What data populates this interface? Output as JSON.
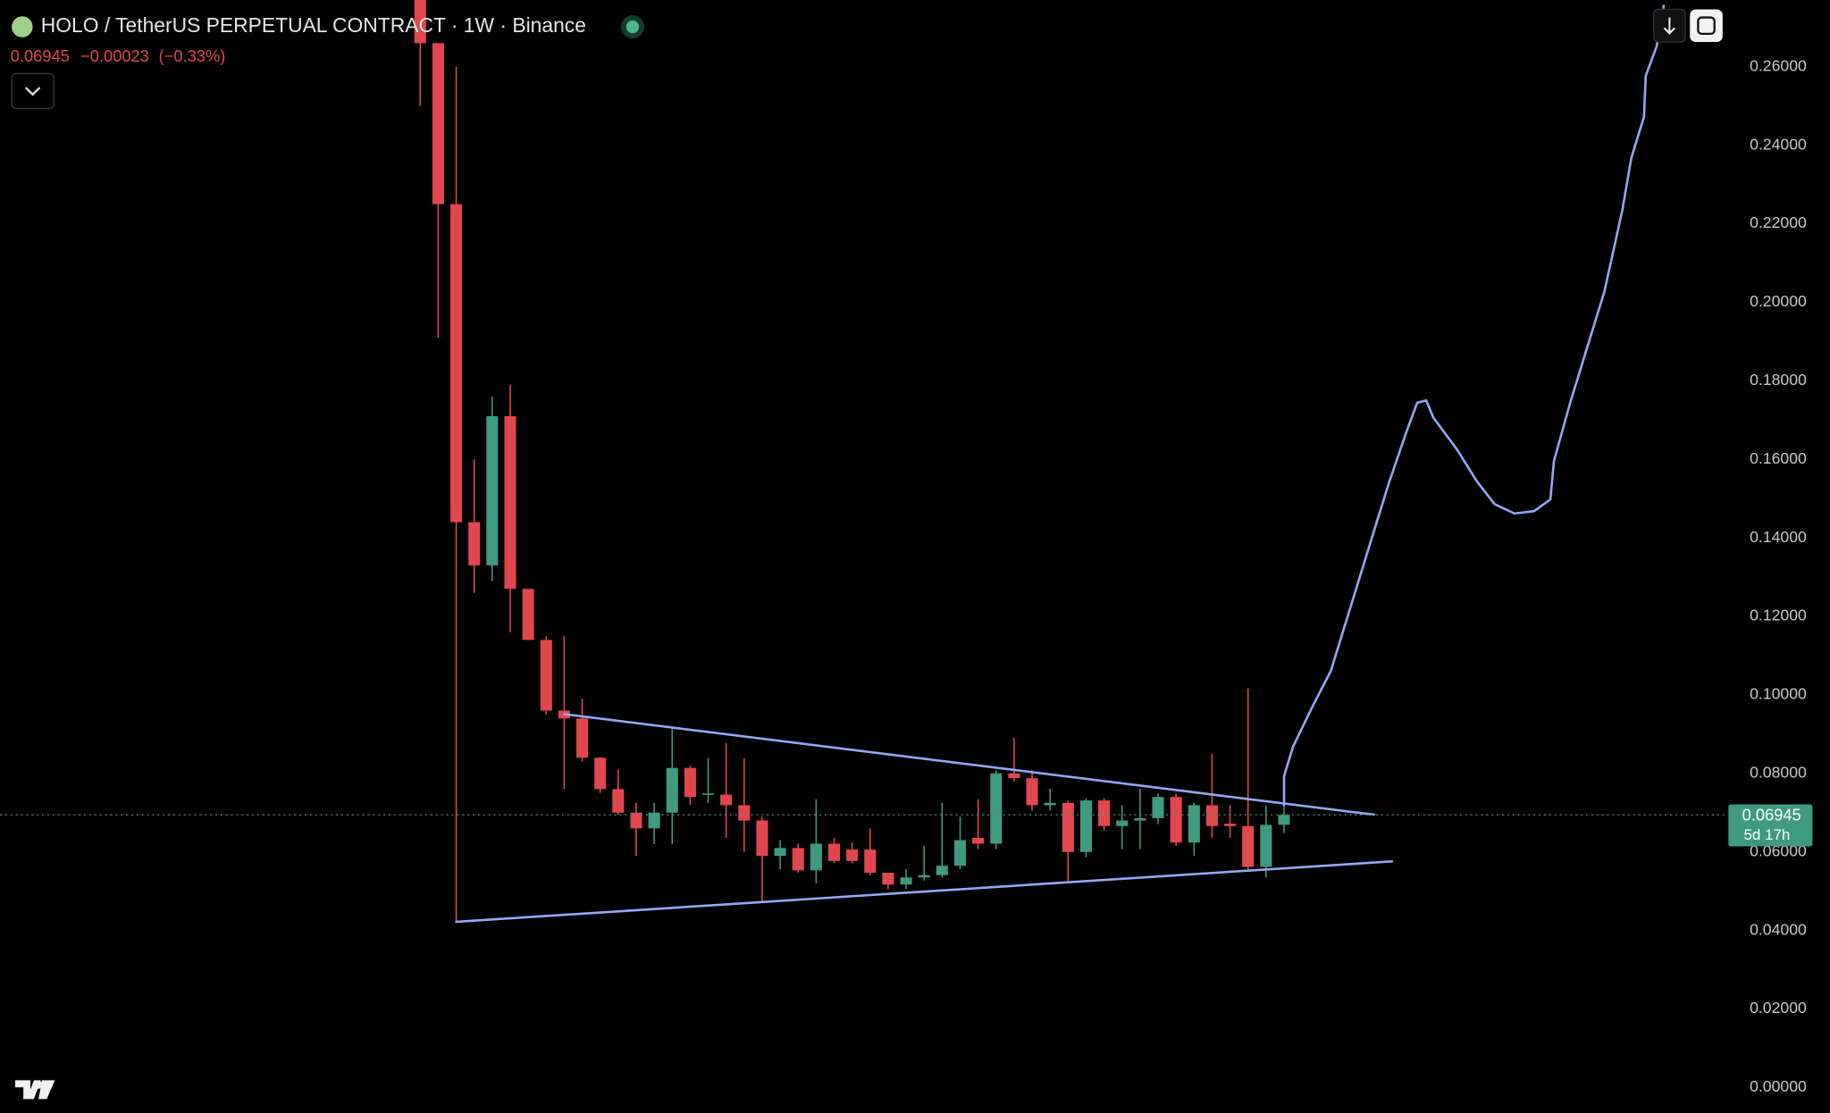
{
  "header": {
    "title": "HOLO / TetherUS PERPETUAL CONTRACT · 1W · Binance",
    "last": "0.06945",
    "change": "−0.00023",
    "change_pct": "(−0.33%)"
  },
  "chart_data": {
    "type": "candlestick",
    "up_color": "#3f9a80",
    "down_color": "#e0484e",
    "drawing_color": "#93a8f4",
    "x": [
      0,
      1,
      2,
      3,
      4,
      5,
      6,
      7,
      8,
      9,
      10,
      11,
      12,
      13,
      14,
      15,
      16,
      17,
      18,
      19,
      20,
      21,
      22,
      23,
      24,
      25,
      26,
      27,
      28,
      29,
      30,
      31,
      32,
      33,
      34,
      35,
      36,
      37,
      38,
      39,
      40,
      41,
      42,
      43,
      44,
      45,
      46,
      47,
      48
    ],
    "open": [
      0.278,
      0.266,
      0.225,
      0.144,
      0.133,
      0.171,
      0.127,
      0.114,
      0.096,
      0.094,
      0.084,
      0.076,
      0.07,
      0.066,
      0.07,
      0.0814,
      0.0746,
      0.0746,
      0.0719,
      0.068,
      0.059,
      0.061,
      0.0553,
      0.0621,
      0.0606,
      0.0606,
      0.0547,
      0.0517,
      0.0535,
      0.0541,
      0.0565,
      0.0636,
      0.0621,
      0.08,
      0.0788,
      0.0719,
      0.0725,
      0.06,
      0.0731,
      0.0666,
      0.068,
      0.0686,
      0.074,
      0.0624,
      0.0719,
      0.0672,
      0.0666,
      0.0562,
      0.0669
    ],
    "high": [
      0.29,
      0.266,
      0.26,
      0.16,
      0.176,
      0.179,
      0.127,
      0.115,
      0.115,
      0.099,
      0.084,
      0.081,
      0.0725,
      0.0725,
      0.0918,
      0.082,
      0.084,
      0.0877,
      0.0838,
      0.069,
      0.063,
      0.0621,
      0.0734,
      0.0636,
      0.0624,
      0.066,
      0.0547,
      0.0556,
      0.0615,
      0.0725,
      0.069,
      0.0734,
      0.0808,
      0.0891,
      0.0808,
      0.0761,
      0.0731,
      0.0737,
      0.0737,
      0.0719,
      0.0761,
      0.0749,
      0.0749,
      0.0725,
      0.085,
      0.0719,
      0.1016,
      0.0719,
      0.0719
    ],
    "low": [
      0.25,
      0.191,
      0.042,
      0.126,
      0.129,
      0.116,
      0.114,
      0.095,
      0.076,
      0.083,
      0.075,
      0.0695,
      0.059,
      0.062,
      0.062,
      0.072,
      0.0725,
      0.0636,
      0.06,
      0.0475,
      0.0556,
      0.0547,
      0.052,
      0.0571,
      0.0571,
      0.0541,
      0.0505,
      0.0505,
      0.0527,
      0.0535,
      0.0556,
      0.0607,
      0.0607,
      0.0779,
      0.0705,
      0.0705,
      0.0526,
      0.0586,
      0.0654,
      0.0607,
      0.0607,
      0.0671,
      0.0615,
      0.059,
      0.0636,
      0.0636,
      0.0556,
      0.0535,
      0.0648
    ],
    "close": [
      0.266,
      0.225,
      0.144,
      0.133,
      0.171,
      0.127,
      0.114,
      0.096,
      0.094,
      0.084,
      0.076,
      0.07,
      0.066,
      0.07,
      0.0814,
      0.074,
      0.0749,
      0.0719,
      0.068,
      0.059,
      0.061,
      0.0553,
      0.0621,
      0.0577,
      0.0577,
      0.0547,
      0.0517,
      0.0535,
      0.0541,
      0.0565,
      0.063,
      0.0621,
      0.08,
      0.0788,
      0.0719,
      0.0725,
      0.06,
      0.0731,
      0.0666,
      0.068,
      0.0686,
      0.074,
      0.0624,
      0.0719,
      0.0666,
      0.0666,
      0.0562,
      0.0669,
      0.06945
    ],
    "xlim": [
      -23.35,
      72.5
    ],
    "ylim": [
      -0.0065,
      0.277
    ],
    "yticks": [
      {
        "value": 0,
        "label": "0.00000"
      },
      {
        "value": 0.02,
        "label": "0.02000"
      },
      {
        "value": 0.04,
        "label": "0.04000"
      },
      {
        "value": 0.06,
        "label": "0.06000"
      },
      {
        "value": 0.08,
        "label": "0.08000"
      },
      {
        "value": 0.1,
        "label": "0.10000"
      },
      {
        "value": 0.12,
        "label": "0.12000"
      },
      {
        "value": 0.14,
        "label": "0.14000"
      },
      {
        "value": 0.16,
        "label": "0.16000"
      },
      {
        "value": 0.18,
        "label": "0.18000"
      },
      {
        "value": 0.2,
        "label": "0.20000"
      },
      {
        "value": 0.22,
        "label": "0.22000"
      },
      {
        "value": 0.24,
        "label": "0.24000"
      },
      {
        "value": 0.26,
        "label": "0.26000"
      }
    ],
    "price_tag": {
      "value": 0.06945,
      "label": "0.06945",
      "countdown": "5d 17h"
    },
    "trendlines": [
      {
        "x": [
          8,
          53
        ],
        "values": [
          0.0951,
          0.0695
        ]
      },
      {
        "x": [
          2,
          54
        ],
        "values": [
          0.0422,
          0.0576
        ]
      }
    ],
    "projection": {
      "x": [
        48,
        48,
        48.5,
        49.6,
        50.6,
        51.9,
        52.9,
        53.8,
        54.8,
        55.4,
        55.9,
        56.3,
        57.6,
        58.7,
        59.7,
        60.8,
        61.9,
        62.8,
        63.0,
        63.9,
        65.0,
        65.8,
        66.8,
        67.3,
        68.0,
        68.1,
        68.7,
        69.1
      ],
      "values": [
        0.0719,
        0.0793,
        0.0868,
        0.0972,
        0.1061,
        0.1254,
        0.1403,
        0.1536,
        0.167,
        0.1744,
        0.175,
        0.1706,
        0.1626,
        0.1545,
        0.1486,
        0.1462,
        0.1468,
        0.1498,
        0.1596,
        0.1744,
        0.1908,
        0.2027,
        0.2235,
        0.2368,
        0.2472,
        0.2577,
        0.2651,
        0.2755
      ]
    }
  }
}
